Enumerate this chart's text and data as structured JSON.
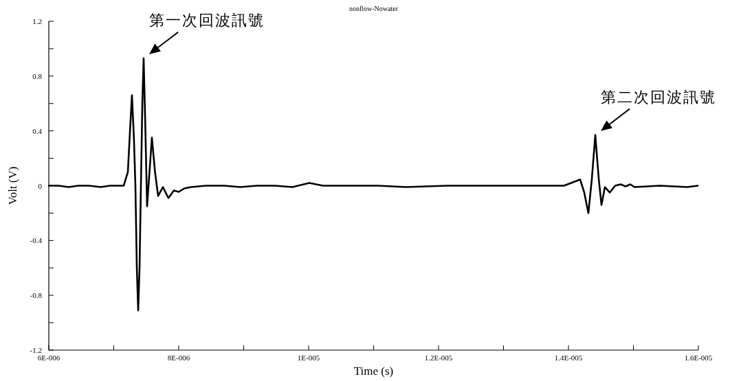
{
  "chart_data": {
    "type": "line",
    "title": "nonflow-Nowater",
    "xlabel": "Time (s)",
    "ylabel": "Volt (V)",
    "xlim": [
      6e-06,
      1.6e-05
    ],
    "ylim": [
      -1.2,
      1.2
    ],
    "xticks": [
      {
        "value": 6e-06,
        "label": "6E-006"
      },
      {
        "value": 7e-06,
        "label": null
      },
      {
        "value": 8e-06,
        "label": "8E-006"
      },
      {
        "value": 9e-06,
        "label": null
      },
      {
        "value": 1e-05,
        "label": "1E-005"
      },
      {
        "value": 1.1e-05,
        "label": null
      },
      {
        "value": 1.2e-05,
        "label": "1.2E-005"
      },
      {
        "value": 1.3e-05,
        "label": null
      },
      {
        "value": 1.4e-05,
        "label": "1.4E-005"
      },
      {
        "value": 1.5e-05,
        "label": null
      },
      {
        "value": 1.6e-05,
        "label": "1.6E-005"
      }
    ],
    "yticks": [
      -1.2,
      {
        "value": -1.0,
        "label": null
      },
      -0.8,
      {
        "value": -0.6,
        "label": null
      },
      -0.4,
      {
        "value": -0.2,
        "label": null
      },
      0,
      {
        "value": 0.2,
        "label": null
      },
      0.4,
      {
        "value": 0.6,
        "label": null
      },
      0.8,
      {
        "value": 1.0,
        "label": null
      },
      1.2
    ],
    "x": [
      6e-06,
      6.15e-06,
      6.31e-06,
      6.45e-06,
      6.62e-06,
      6.8e-06,
      6.94e-06,
      7.08e-06,
      7.153e-06,
      7.217e-06,
      7.25e-06,
      7.28e-06,
      7.31e-06,
      7.333e-06,
      7.355e-06,
      7.376e-06,
      7.397e-06,
      7.418e-06,
      7.44e-06,
      7.46e-06,
      7.485e-06,
      7.513e-06,
      7.55e-06,
      7.587e-06,
      7.635e-06,
      7.683e-06,
      7.757e-06,
      7.841e-06,
      7.926e-06,
      8e-06,
      8.085e-06,
      8.19e-06,
      8.42e-06,
      8.7e-06,
      8.95e-06,
      9.2e-06,
      9.48e-06,
      9.75e-06,
      1.0011e-05,
      1.022e-05,
      1.05e-05,
      1.107e-05,
      1.15e-05,
      1.213e-05,
      1.26e-05,
      1.319e-05,
      1.36e-05,
      1.393e-05,
      1.418e-05,
      1.4243e-05,
      1.4307e-05,
      1.436e-05,
      1.4413e-05,
      1.4466e-05,
      1.4508e-05,
      1.4561e-05,
      1.4635e-05,
      1.472e-05,
      1.4804e-05,
      1.4878e-05,
      1.4952e-05,
      1.5016e-05,
      1.541e-05,
      1.583e-05,
      1.599e-05
    ],
    "series": [
      {
        "color": "#000000",
        "values": [
          0.0,
          0.0,
          -0.01,
          0.0,
          0.0,
          -0.01,
          0.0,
          0.0,
          0.0,
          0.1,
          0.4,
          0.66,
          0.35,
          0.0,
          -0.6,
          -0.91,
          -0.6,
          0.0,
          0.6,
          0.93,
          0.45,
          -0.15,
          0.1,
          0.35,
          0.1,
          -0.075,
          -0.01,
          -0.09,
          -0.035,
          -0.045,
          -0.02,
          -0.01,
          0.0,
          0.0,
          -0.01,
          0.0,
          0.0,
          -0.01,
          0.02,
          0.0,
          0.0,
          0.0,
          -0.01,
          0.0,
          0.0,
          0.0,
          0.0,
          0.0,
          0.045,
          -0.05,
          -0.2,
          0.05,
          0.37,
          0.05,
          -0.14,
          -0.01,
          -0.05,
          0.0,
          0.01,
          -0.005,
          0.01,
          -0.01,
          0.0,
          -0.01,
          0.0
        ]
      }
    ],
    "line_style": "solid",
    "marker": "none",
    "annotations": [
      {
        "text": "第一次回波訊號",
        "x": 7.46e-06,
        "y": 0.93
      },
      {
        "text": "第二次回波訊號",
        "x": 1.4413e-05,
        "y": 0.37
      }
    ]
  }
}
